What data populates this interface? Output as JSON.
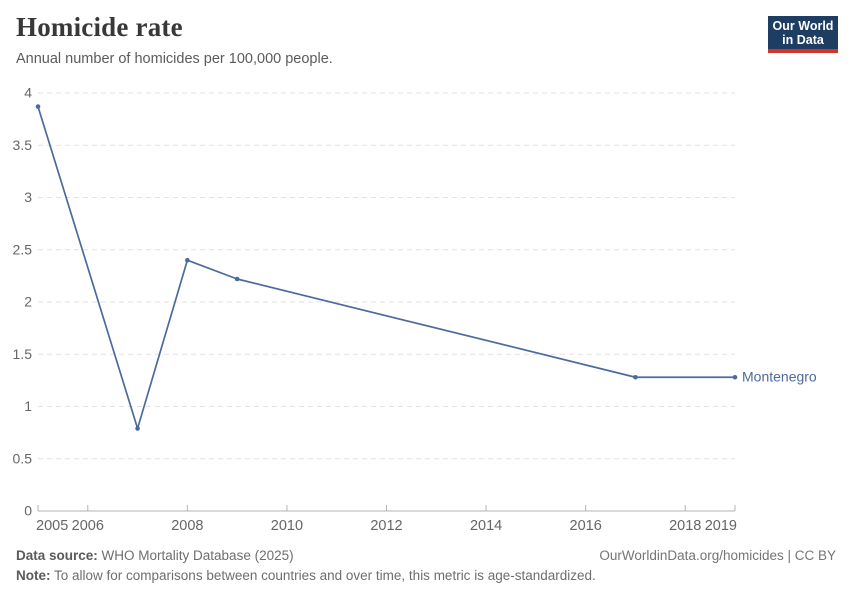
{
  "header": {
    "title": "Homicide rate",
    "subtitle": "Annual number of homicides per 100,000 people.",
    "logo": {
      "line1": "Our World",
      "line2": "in Data"
    }
  },
  "chart_data": {
    "type": "line",
    "series": [
      {
        "name": "Montenegro",
        "color": "#4c6a9c",
        "points": [
          {
            "x": 2005,
            "y": 3.87
          },
          {
            "x": 2007,
            "y": 0.79
          },
          {
            "x": 2008,
            "y": 2.4
          },
          {
            "x": 2009,
            "y": 2.22
          },
          {
            "x": 2017,
            "y": 1.28
          },
          {
            "x": 2019,
            "y": 1.28
          }
        ]
      }
    ],
    "end_label": "Montenegro",
    "x_ticks": [
      2005,
      2006,
      2008,
      2010,
      2012,
      2014,
      2016,
      2018,
      2019
    ],
    "y_ticks": [
      0,
      0.5,
      1,
      1.5,
      2,
      2.5,
      3,
      3.5,
      4
    ],
    "xlim": [
      2005,
      2019
    ],
    "ylim": [
      0,
      4
    ],
    "grid": true,
    "legend_position": "end-of-line",
    "title": "Homicide rate",
    "xlabel": "",
    "ylabel": "",
    "colors": {
      "gridline": "#e2e2e2",
      "axis": "#b3b3b3",
      "tick_label": "#666666"
    }
  },
  "footer": {
    "datasource_label": "Data source:",
    "datasource_text": " WHO Mortality Database (2025)",
    "link": "OurWorldinData.org/homicides | CC BY",
    "note_label": "Note:",
    "note_text": " To allow for comparisons between countries and over time, this metric is age-standardized."
  }
}
